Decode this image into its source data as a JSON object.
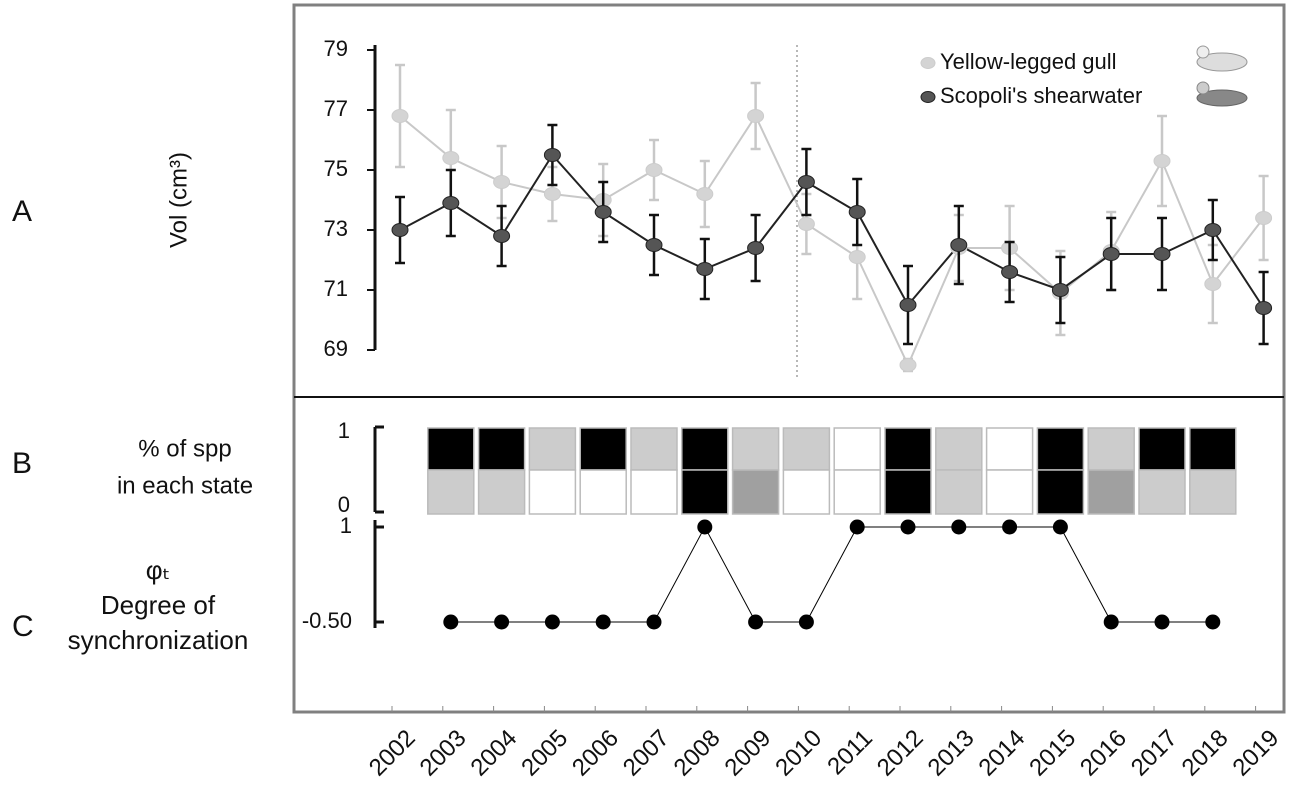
{
  "chart_data": [
    {
      "type": "line",
      "panel_label": "A",
      "ylabel": "Vol (cm³)",
      "categories": [
        "2002",
        "2003",
        "2004",
        "2005",
        "2006",
        "2007",
        "2008",
        "2009",
        "2010",
        "2011",
        "2012",
        "2013",
        "2014",
        "2015",
        "2016",
        "2017",
        "2018",
        "2019"
      ],
      "ylim": [
        69,
        79
      ],
      "yticks": [
        69,
        71,
        73,
        75,
        77,
        79
      ],
      "series": [
        {
          "name": "Yellow-legged gull",
          "color": "#c8c8c8",
          "values": [
            76.8,
            75.4,
            74.6,
            74.2,
            74.0,
            75.0,
            74.2,
            76.8,
            73.2,
            72.1,
            68.5,
            72.4,
            72.4,
            70.9,
            72.3,
            75.3,
            71.2,
            73.4
          ],
          "errors": [
            1.7,
            1.6,
            1.2,
            0.9,
            1.2,
            1.0,
            1.1,
            1.1,
            1.0,
            1.4,
            0.2,
            1.1,
            1.4,
            1.4,
            1.3,
            1.5,
            1.3,
            1.4
          ]
        },
        {
          "name": "Scopoli's shearwater",
          "color": "#222222",
          "values": [
            73.0,
            73.9,
            72.8,
            75.5,
            73.6,
            72.5,
            71.7,
            72.4,
            74.6,
            73.6,
            70.5,
            72.5,
            71.6,
            71.0,
            72.2,
            72.2,
            73.0,
            70.4
          ],
          "errors": [
            1.1,
            1.1,
            1.0,
            1.0,
            1.0,
            1.0,
            1.0,
            1.1,
            1.1,
            1.1,
            1.3,
            1.3,
            1.0,
            1.1,
            1.2,
            1.2,
            1.0,
            1.2
          ]
        }
      ]
    },
    {
      "type": "state",
      "panel_label": "B",
      "ylabel": [
        "% of spp",
        "in each state"
      ],
      "ylim": [
        0,
        1
      ],
      "yticks": [
        0,
        1
      ],
      "states": [
        null,
        {
          "top": "#000000",
          "bottom": "#cccccc"
        },
        {
          "top": "#000000",
          "bottom": "#cccccc"
        },
        {
          "top": "#cccccc",
          "bottom": "#ffffff"
        },
        {
          "top": "#000000",
          "bottom": "#ffffff"
        },
        {
          "top": "#cccccc",
          "bottom": "#ffffff"
        },
        {
          "top": "#000000",
          "bottom": "#000000"
        },
        {
          "top": "#cccccc",
          "bottom": "#a0a0a0"
        },
        {
          "top": "#cccccc",
          "bottom": "#ffffff"
        },
        {
          "top": "#ffffff",
          "bottom": "#ffffff"
        },
        {
          "top": "#000000",
          "bottom": "#000000"
        },
        {
          "top": "#cccccc",
          "bottom": "#cccccc"
        },
        {
          "top": "#ffffff",
          "bottom": "#ffffff"
        },
        {
          "top": "#000000",
          "bottom": "#000000"
        },
        {
          "top": "#cccccc",
          "bottom": "#a0a0a0"
        },
        {
          "top": "#000000",
          "bottom": "#cccccc"
        },
        {
          "top": "#000000",
          "bottom": "#cccccc"
        },
        null
      ]
    },
    {
      "type": "dots",
      "panel_label": "C",
      "ylabel": [
        "φₜ",
        "Degree of",
        "synchronization"
      ],
      "ylim": [
        -0.5,
        1
      ],
      "yticks": [
        {
          "value": -0.5,
          "label": "-0.50"
        },
        1
      ],
      "color": "#000000",
      "values": [
        null,
        -0.5,
        -0.5,
        -0.5,
        -0.5,
        -0.5,
        1,
        -0.5,
        -0.5,
        1,
        1,
        1,
        1,
        1,
        -0.5,
        -0.5,
        -0.5,
        null
      ]
    }
  ]
}
